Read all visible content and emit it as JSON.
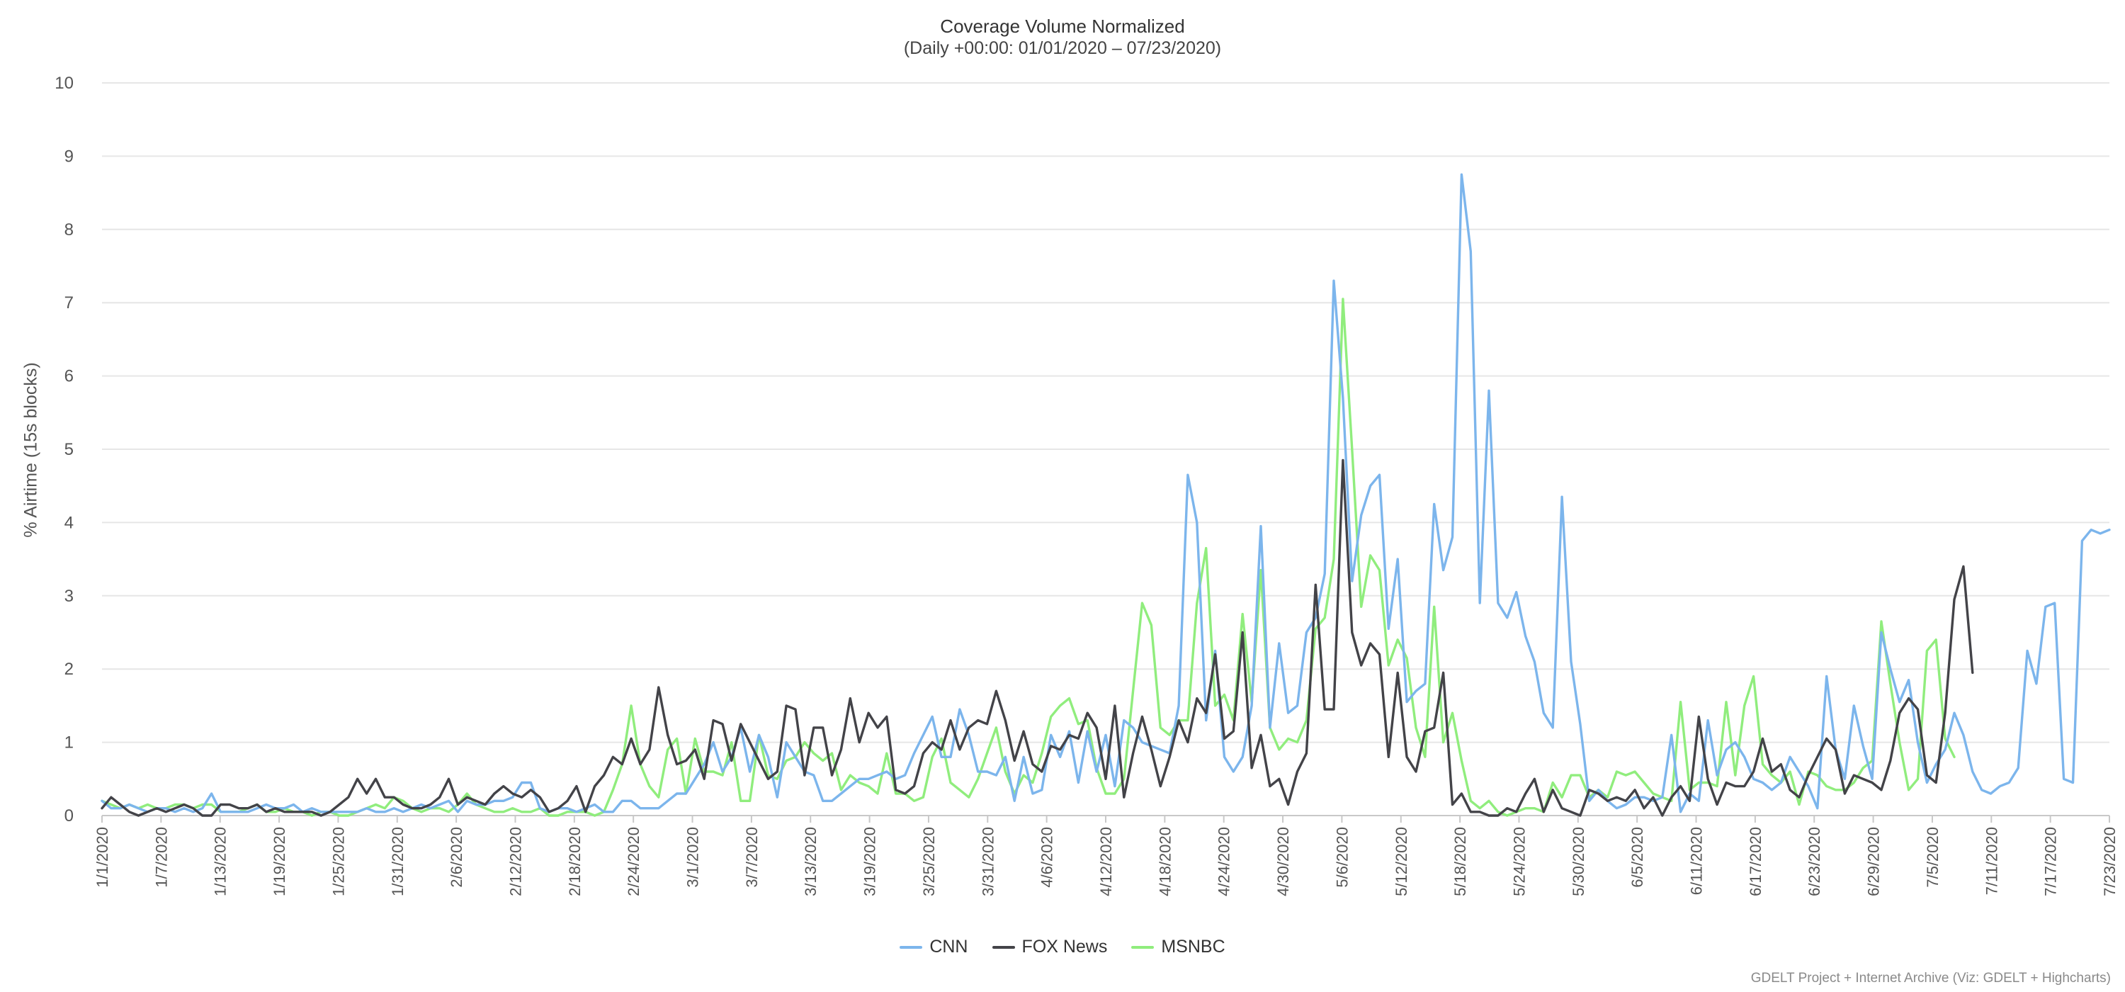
{
  "chart_data": {
    "type": "line",
    "title": "Coverage Volume Normalized",
    "subtitle": "(Daily +00:00: 01/01/2020 – 07/23/2020)",
    "xlabel": "",
    "ylabel": "% Airtime (15s blocks)",
    "ylim": [
      0,
      10
    ],
    "y_ticks": [
      0,
      1,
      2,
      3,
      4,
      5,
      6,
      7,
      8,
      9,
      10
    ],
    "x_start": "1/1/2020",
    "x_end": "7/23/2020",
    "x_tick_labels": [
      "1/1/2020",
      "1/7/2020",
      "1/13/2020",
      "1/19/2020",
      "1/25/2020",
      "1/31/2020",
      "2/6/2020",
      "2/12/2020",
      "2/18/2020",
      "2/24/2020",
      "3/1/2020",
      "3/7/2020",
      "3/13/2020",
      "3/19/2020",
      "3/25/2020",
      "3/31/2020",
      "4/6/2020",
      "4/12/2020",
      "4/18/2020",
      "4/24/2020",
      "4/30/2020",
      "5/6/2020",
      "5/12/2020",
      "5/18/2020",
      "5/24/2020",
      "5/30/2020",
      "6/5/2020",
      "6/11/2020",
      "6/17/2020",
      "6/23/2020",
      "6/29/2020",
      "7/5/2020",
      "7/11/2020",
      "7/17/2020",
      "7/23/2020"
    ],
    "grid": true,
    "legend_position": "bottom-center",
    "series": [
      {
        "name": "CNN",
        "color": "#7cb5ec",
        "values": [
          0.2,
          0.1,
          0.1,
          0.15,
          0.1,
          0.05,
          0.1,
          0.1,
          0.05,
          0.1,
          0.05,
          0.1,
          0.3,
          0.05,
          0.05,
          0.05,
          0.05,
          0.1,
          0.15,
          0.1,
          0.1,
          0.15,
          0.05,
          0.1,
          0.05,
          0.05,
          0.05,
          0.05,
          0.05,
          0.1,
          0.05,
          0.05,
          0.1,
          0.05,
          0.1,
          0.15,
          0.1,
          0.15,
          0.2,
          0.05,
          0.2,
          0.15,
          0.15,
          0.2,
          0.2,
          0.25,
          0.45,
          0.45,
          0.1,
          0.05,
          0.1,
          0.1,
          0.05,
          0.1,
          0.15,
          0.05,
          0.05,
          0.2,
          0.2,
          0.1,
          0.1,
          0.1,
          0.2,
          0.3,
          0.3,
          0.5,
          0.7,
          1.0,
          0.6,
          0.8,
          1.2,
          0.6,
          1.1,
          0.8,
          0.25,
          1.0,
          0.8,
          0.6,
          0.55,
          0.2,
          0.2,
          0.3,
          0.4,
          0.5,
          0.5,
          0.55,
          0.6,
          0.5,
          0.55,
          0.85,
          1.1,
          1.35,
          0.8,
          0.8,
          1.45,
          1.1,
          0.6,
          0.6,
          0.55,
          0.8,
          0.2,
          0.8,
          0.3,
          0.35,
          1.1,
          0.8,
          1.15,
          0.45,
          1.15,
          0.6,
          1.1,
          0.4,
          1.3,
          1.2,
          1.0,
          0.95,
          0.9,
          0.85,
          1.5,
          4.65,
          4.0,
          1.3,
          2.25,
          0.8,
          0.6,
          0.8,
          1.5,
          3.95,
          1.2,
          2.35,
          1.4,
          1.5,
          2.5,
          2.7,
          3.3,
          7.3,
          5.7,
          3.2,
          4.1,
          4.5,
          4.65,
          2.55,
          3.5,
          1.55,
          1.7,
          1.8,
          4.25,
          3.35,
          3.8,
          8.75,
          7.7,
          2.9,
          5.8,
          2.9,
          2.7,
          3.05,
          2.45,
          2.1,
          1.4,
          1.2,
          4.35,
          2.1,
          1.25,
          0.2,
          0.35,
          0.2,
          0.1,
          0.15,
          0.25,
          0.25,
          0.2,
          0.25,
          1.1,
          0.05,
          0.3,
          0.2,
          1.3,
          0.55,
          0.9,
          1.0,
          0.8,
          0.5,
          0.45,
          0.35,
          0.45,
          0.8,
          0.6,
          0.4,
          0.1,
          1.9,
          0.9,
          0.5,
          1.5,
          0.95,
          0.5,
          2.5,
          2.0,
          1.55,
          1.85,
          1.0,
          0.45,
          0.7,
          0.9,
          1.4,
          1.1,
          0.6,
          0.35,
          0.3,
          0.4,
          0.45,
          0.65,
          2.25,
          1.8,
          2.85,
          2.9,
          0.5,
          0.45,
          3.75,
          3.9,
          3.85,
          3.9
        ]
      },
      {
        "name": "FOX News",
        "color": "#434348",
        "values": [
          0.1,
          0.25,
          0.15,
          0.05,
          0.0,
          0.05,
          0.1,
          0.05,
          0.1,
          0.15,
          0.1,
          0.0,
          0.0,
          0.15,
          0.15,
          0.1,
          0.1,
          0.15,
          0.05,
          0.1,
          0.05,
          0.05,
          0.05,
          0.05,
          0.0,
          0.05,
          0.15,
          0.25,
          0.5,
          0.3,
          0.5,
          0.25,
          0.25,
          0.15,
          0.1,
          0.1,
          0.15,
          0.25,
          0.5,
          0.15,
          0.25,
          0.2,
          0.15,
          0.3,
          0.4,
          0.3,
          0.25,
          0.35,
          0.25,
          0.05,
          0.1,
          0.2,
          0.4,
          0.05,
          0.4,
          0.55,
          0.8,
          0.7,
          1.05,
          0.7,
          0.9,
          1.75,
          1.1,
          0.7,
          0.75,
          0.9,
          0.5,
          1.3,
          1.25,
          0.75,
          1.25,
          1.0,
          0.75,
          0.5,
          0.6,
          1.5,
          1.45,
          0.55,
          1.2,
          1.2,
          0.55,
          0.9,
          1.6,
          1.0,
          1.4,
          1.2,
          1.35,
          0.35,
          0.3,
          0.4,
          0.85,
          1.0,
          0.9,
          1.3,
          0.9,
          1.2,
          1.3,
          1.25,
          1.7,
          1.3,
          0.75,
          1.15,
          0.7,
          0.6,
          0.95,
          0.9,
          1.1,
          1.05,
          1.4,
          1.2,
          0.5,
          1.5,
          0.25,
          0.85,
          1.35,
          0.9,
          0.4,
          0.8,
          1.3,
          1.0,
          1.6,
          1.4,
          2.2,
          1.05,
          1.15,
          2.5,
          0.65,
          1.1,
          0.4,
          0.5,
          0.15,
          0.6,
          0.85,
          3.15,
          1.45,
          1.45,
          4.85,
          2.5,
          2.05,
          2.35,
          2.2,
          0.8,
          1.95,
          0.8,
          0.6,
          1.15,
          1.2,
          1.95,
          0.15,
          0.3,
          0.05,
          0.05,
          0.0,
          0.0,
          0.1,
          0.05,
          0.3,
          0.5,
          0.05,
          0.35,
          0.1,
          0.05,
          0.0,
          0.35,
          0.3,
          0.2,
          0.25,
          0.2,
          0.35,
          0.1,
          0.25,
          0.0,
          0.25,
          0.4,
          0.2,
          1.35,
          0.5,
          0.15,
          0.45,
          0.4,
          0.4,
          0.6,
          1.05,
          0.6,
          0.7,
          0.35,
          0.25,
          0.55,
          0.8,
          1.05,
          0.9,
          0.3,
          0.55,
          0.5,
          0.45,
          0.35,
          0.75,
          1.4,
          1.6,
          1.45,
          0.55,
          0.45,
          1.4,
          2.95,
          3.4,
          1.95
        ]
      },
      {
        "name": "MSNBC",
        "color": "#90ed7d",
        "values": [
          0.2,
          0.15,
          0.1,
          0.15,
          0.1,
          0.15,
          0.1,
          0.1,
          0.15,
          0.15,
          0.1,
          0.15,
          0.15,
          0.05,
          0.05,
          0.05,
          0.1,
          0.15,
          0.05,
          0.05,
          0.1,
          0.05,
          0.05,
          0.0,
          0.05,
          0.05,
          0.0,
          0.0,
          0.05,
          0.1,
          0.15,
          0.1,
          0.25,
          0.2,
          0.1,
          0.05,
          0.1,
          0.1,
          0.05,
          0.15,
          0.3,
          0.15,
          0.1,
          0.05,
          0.05,
          0.1,
          0.05,
          0.05,
          0.1,
          0.0,
          0.0,
          0.05,
          0.05,
          0.05,
          0.0,
          0.05,
          0.35,
          0.7,
          1.5,
          0.7,
          0.4,
          0.25,
          0.9,
          1.05,
          0.3,
          1.05,
          0.6,
          0.6,
          0.55,
          1.0,
          0.2,
          0.2,
          1.1,
          0.55,
          0.5,
          0.75,
          0.8,
          1.0,
          0.85,
          0.75,
          0.85,
          0.35,
          0.55,
          0.45,
          0.4,
          0.3,
          0.85,
          0.3,
          0.3,
          0.2,
          0.25,
          0.8,
          1.05,
          0.45,
          0.35,
          0.25,
          0.5,
          0.85,
          1.2,
          0.6,
          0.3,
          0.55,
          0.45,
          0.85,
          1.35,
          1.5,
          1.6,
          1.25,
          1.3,
          0.65,
          0.3,
          0.3,
          0.5,
          1.7,
          2.9,
          2.6,
          1.2,
          1.1,
          1.3,
          1.3,
          2.9,
          3.65,
          1.5,
          1.65,
          1.3,
          2.75,
          1.55,
          3.35,
          1.2,
          0.9,
          1.05,
          1.0,
          1.3,
          2.55,
          2.7,
          3.5,
          7.05,
          5.0,
          2.85,
          3.55,
          3.35,
          2.05,
          2.4,
          2.15,
          1.2,
          0.8,
          2.85,
          1.0,
          1.4,
          0.75,
          0.2,
          0.1,
          0.2,
          0.05,
          0.0,
          0.05,
          0.1,
          0.1,
          0.05,
          0.45,
          0.25,
          0.55,
          0.55,
          0.25,
          0.35,
          0.25,
          0.6,
          0.55,
          0.6,
          0.45,
          0.3,
          0.25,
          0.2,
          1.55,
          0.35,
          0.45,
          0.45,
          0.4,
          1.55,
          0.55,
          1.5,
          1.9,
          0.7,
          0.55,
          0.45,
          0.6,
          0.15,
          0.6,
          0.55,
          0.4,
          0.35,
          0.35,
          0.45,
          0.65,
          0.75,
          2.65,
          1.8,
          1.0,
          0.35,
          0.5,
          2.25,
          2.4,
          1.05,
          0.8
        ]
      }
    ]
  },
  "credits": "GDELT Project + Internet Archive (Viz: GDELT + Highcharts)"
}
